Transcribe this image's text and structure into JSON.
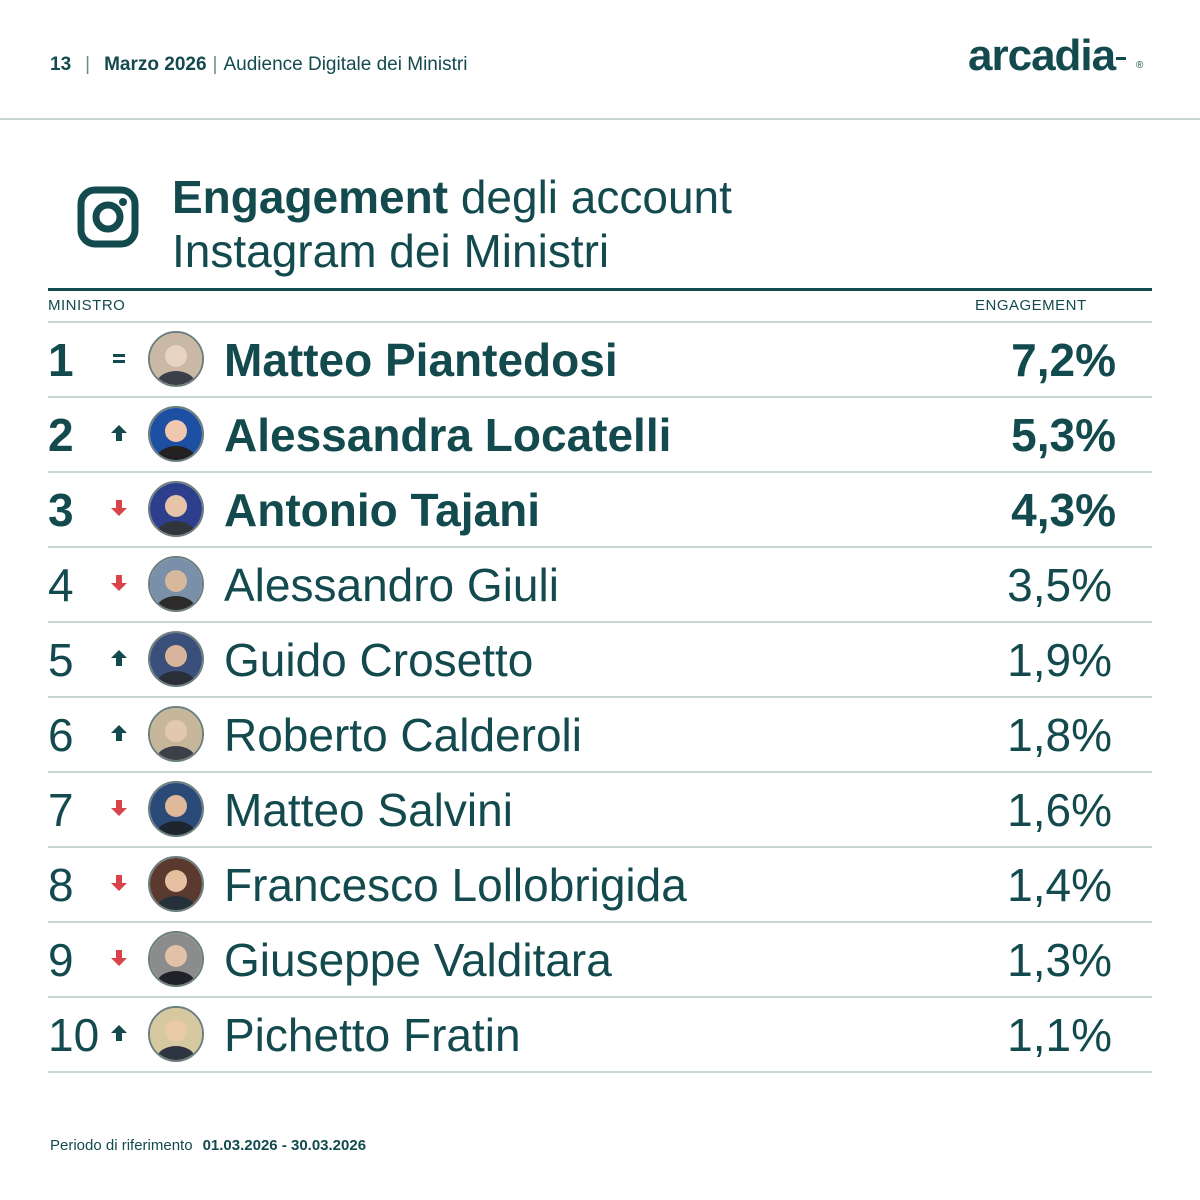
{
  "header": {
    "page_number": "13",
    "separator": "|",
    "period": "Marzo 2026",
    "report_title": "Audience Digitale dei Ministri"
  },
  "brand": {
    "logo_text": "arcadia",
    "registered_mark": "®"
  },
  "title": {
    "bold": "Engagement",
    "rest_line1": " degli account",
    "line2": "Instagram dei Ministri",
    "icon": "instagram-icon"
  },
  "table": {
    "col_minister": "MINISTRO",
    "col_engagement": "ENGAGEMENT",
    "rows": [
      {
        "rank": "1",
        "trend": "equal",
        "name": "Matteo Piantedosi",
        "engagement": "7,2%"
      },
      {
        "rank": "2",
        "trend": "up",
        "name": "Alessandra Locatelli",
        "engagement": "5,3%"
      },
      {
        "rank": "3",
        "trend": "down",
        "name": "Antonio Tajani",
        "engagement": "4,3%"
      },
      {
        "rank": "4",
        "trend": "down",
        "name": "Alessandro Giuli",
        "engagement": "3,5%"
      },
      {
        "rank": "5",
        "trend": "up",
        "name": "Guido Crosetto",
        "engagement": "1,9%"
      },
      {
        "rank": "6",
        "trend": "up",
        "name": "Roberto Calderoli",
        "engagement": "1,8%"
      },
      {
        "rank": "7",
        "trend": "down",
        "name": "Matteo Salvini",
        "engagement": "1,6%"
      },
      {
        "rank": "8",
        "trend": "down",
        "name": "Francesco Lollobrigida",
        "engagement": "1,4%"
      },
      {
        "rank": "9",
        "trend": "down",
        "name": "Giuseppe Valditara",
        "engagement": "1,3%"
      },
      {
        "rank": "10",
        "trend": "up",
        "name": "Pichetto Fratin",
        "engagement": "1,1%"
      }
    ]
  },
  "footer": {
    "label": "Periodo di riferimento",
    "range": "01.03.2026 - 30.03.2026"
  },
  "colors": {
    "primary": "#134a4e",
    "up_arrow": "#134a4e",
    "down_arrow": "#d9444a",
    "rule": "#c9d6d6"
  }
}
